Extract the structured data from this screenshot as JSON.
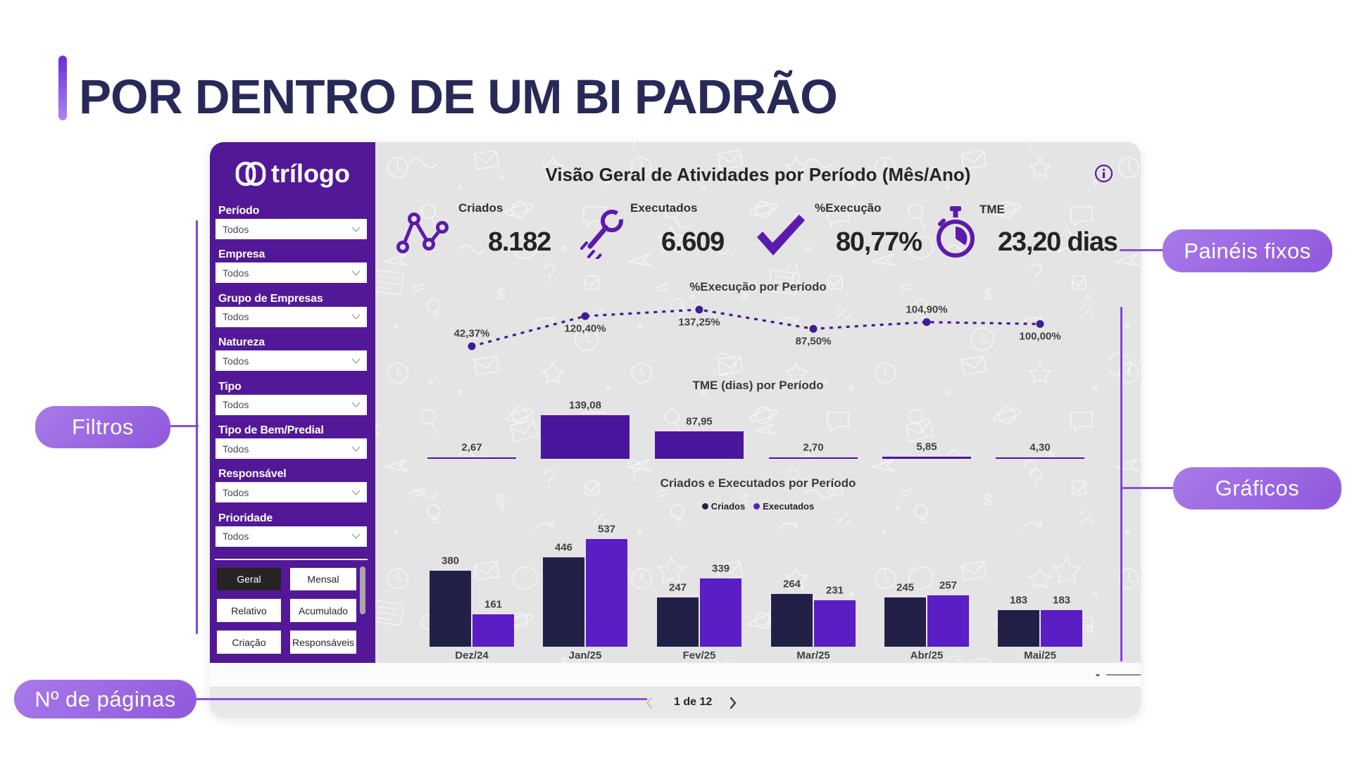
{
  "slide": {
    "title": "POR DENTRO DE UM BI PADRÃO"
  },
  "callouts": {
    "paineis_fixos": "Painéis fixos",
    "filtros": "Filtros",
    "graficos": "Gráficos",
    "num_paginas": "Nº de páginas"
  },
  "colors": {
    "sidebar": "#521897",
    "accent_bar_top": "#6d2bd9",
    "accent_bar_bottom": "#a987ef",
    "slide_title": "#272a58",
    "callout": "#9d6ce4",
    "connector": "#8a50d8",
    "kpi_icon": "#5c1aad",
    "tme_bar": "#4a169d",
    "line_series": "#3d1d96",
    "criados_series": "#232048",
    "executados_series": "#5a1ec4",
    "doodle_background": "#e5e4e4"
  },
  "sidebar": {
    "logo_text": "trílogo",
    "filters": [
      {
        "label": "Período",
        "value": "Todos"
      },
      {
        "label": "Empresa",
        "value": "Todos"
      },
      {
        "label": "Grupo de Empresas",
        "value": "Todos"
      },
      {
        "label": "Natureza",
        "value": "Todos"
      },
      {
        "label": "Tipo",
        "value": "Todos"
      },
      {
        "label": "Tipo de Bem/Predial",
        "value": "Todos"
      },
      {
        "label": "Responsável",
        "value": "Todos"
      },
      {
        "label": "Prioridade",
        "value": "Todos"
      }
    ],
    "buttons": [
      {
        "label": "Geral",
        "selected": true
      },
      {
        "label": "Mensal",
        "selected": false
      },
      {
        "label": "Relativo",
        "selected": false
      },
      {
        "label": "Acumulado",
        "selected": false
      },
      {
        "label": "Criação",
        "selected": false
      },
      {
        "label": "Responsáveis",
        "selected": false
      }
    ]
  },
  "dashboard": {
    "title": "Visão Geral de Atividades por Período (Mês/Ano)",
    "kpis": [
      {
        "icon": "line-chart-icon",
        "label": "Criados",
        "value": "8.182"
      },
      {
        "icon": "wrench-icon",
        "label": "Executados",
        "value": "6.609"
      },
      {
        "icon": "check-icon",
        "label": "%Execução",
        "value": "80,77%"
      },
      {
        "icon": "stopwatch-icon",
        "label": "TME",
        "value": "23,20 dias"
      }
    ],
    "zoom_minus": "-",
    "pagination": {
      "label": "1 de 12"
    }
  },
  "chart_data": [
    {
      "type": "line",
      "title": "%Execução por Período",
      "categories": [
        "Dez/24",
        "Jan/25",
        "Fev/25",
        "Mar/25",
        "Abr/25",
        "Mai/25"
      ],
      "values": [
        42.37,
        120.4,
        137.25,
        87.5,
        104.9,
        100.0
      ],
      "labels": [
        "42,37%",
        "120,40%",
        "137,25%",
        "87,50%",
        "104,90%",
        "100,00%"
      ],
      "label_side": [
        "above",
        "below",
        "below",
        "below",
        "above",
        "below"
      ],
      "legend_position": "none",
      "grid": false
    },
    {
      "type": "bar",
      "title": "TME (dias) por Período",
      "categories": [
        "Dez/24",
        "Jan/25",
        "Fev/25",
        "Mar/25",
        "Abr/25",
        "Mai/25"
      ],
      "values": [
        2.67,
        139.08,
        87.95,
        2.7,
        5.85,
        4.3
      ],
      "labels": [
        "2,67",
        "139,08",
        "87,95",
        "2,70",
        "5,85",
        "4,30"
      ],
      "legend_position": "none",
      "grid": false
    },
    {
      "type": "bar",
      "title": "Criados e Executados por Período",
      "categories": [
        "Dez/24",
        "Jan/25",
        "Fev/25",
        "Mar/25",
        "Abr/25",
        "Mai/25"
      ],
      "series": [
        {
          "name": "Criados",
          "color": "#232048",
          "values": [
            380,
            446,
            247,
            264,
            245,
            183
          ]
        },
        {
          "name": "Executados",
          "color": "#5a1ec4",
          "values": [
            161,
            537,
            339,
            231,
            257,
            183
          ]
        }
      ],
      "legend_position": "top",
      "grid": false
    }
  ]
}
